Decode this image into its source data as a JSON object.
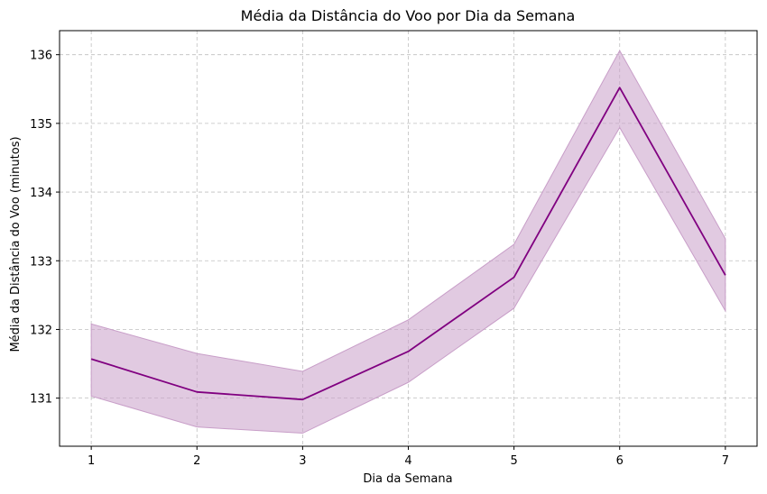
{
  "chart_data": {
    "type": "line",
    "title": "Média da Distância do Voo por Dia da Semana",
    "xlabel": "Dia da Semana",
    "ylabel": "Média da Distância do Voo (minutos)",
    "x": [
      1,
      2,
      3,
      4,
      5,
      6,
      7
    ],
    "xlim": [
      0.7,
      7.3
    ],
    "ylim": [
      130.3,
      136.35
    ],
    "xticks": [
      1,
      2,
      3,
      4,
      5,
      6,
      7
    ],
    "yticks": [
      131,
      132,
      133,
      134,
      135,
      136
    ],
    "grid": true,
    "series": [
      {
        "color": "#800080",
        "band_color": "#c89ec8",
        "values": [
          131.57,
          131.09,
          130.98,
          131.68,
          132.76,
          135.52,
          132.79
        ],
        "upper": [
          132.08,
          131.65,
          131.39,
          132.14,
          133.24,
          136.06,
          133.32
        ],
        "lower": [
          131.03,
          130.58,
          130.49,
          131.23,
          132.31,
          134.94,
          132.27
        ]
      }
    ]
  }
}
